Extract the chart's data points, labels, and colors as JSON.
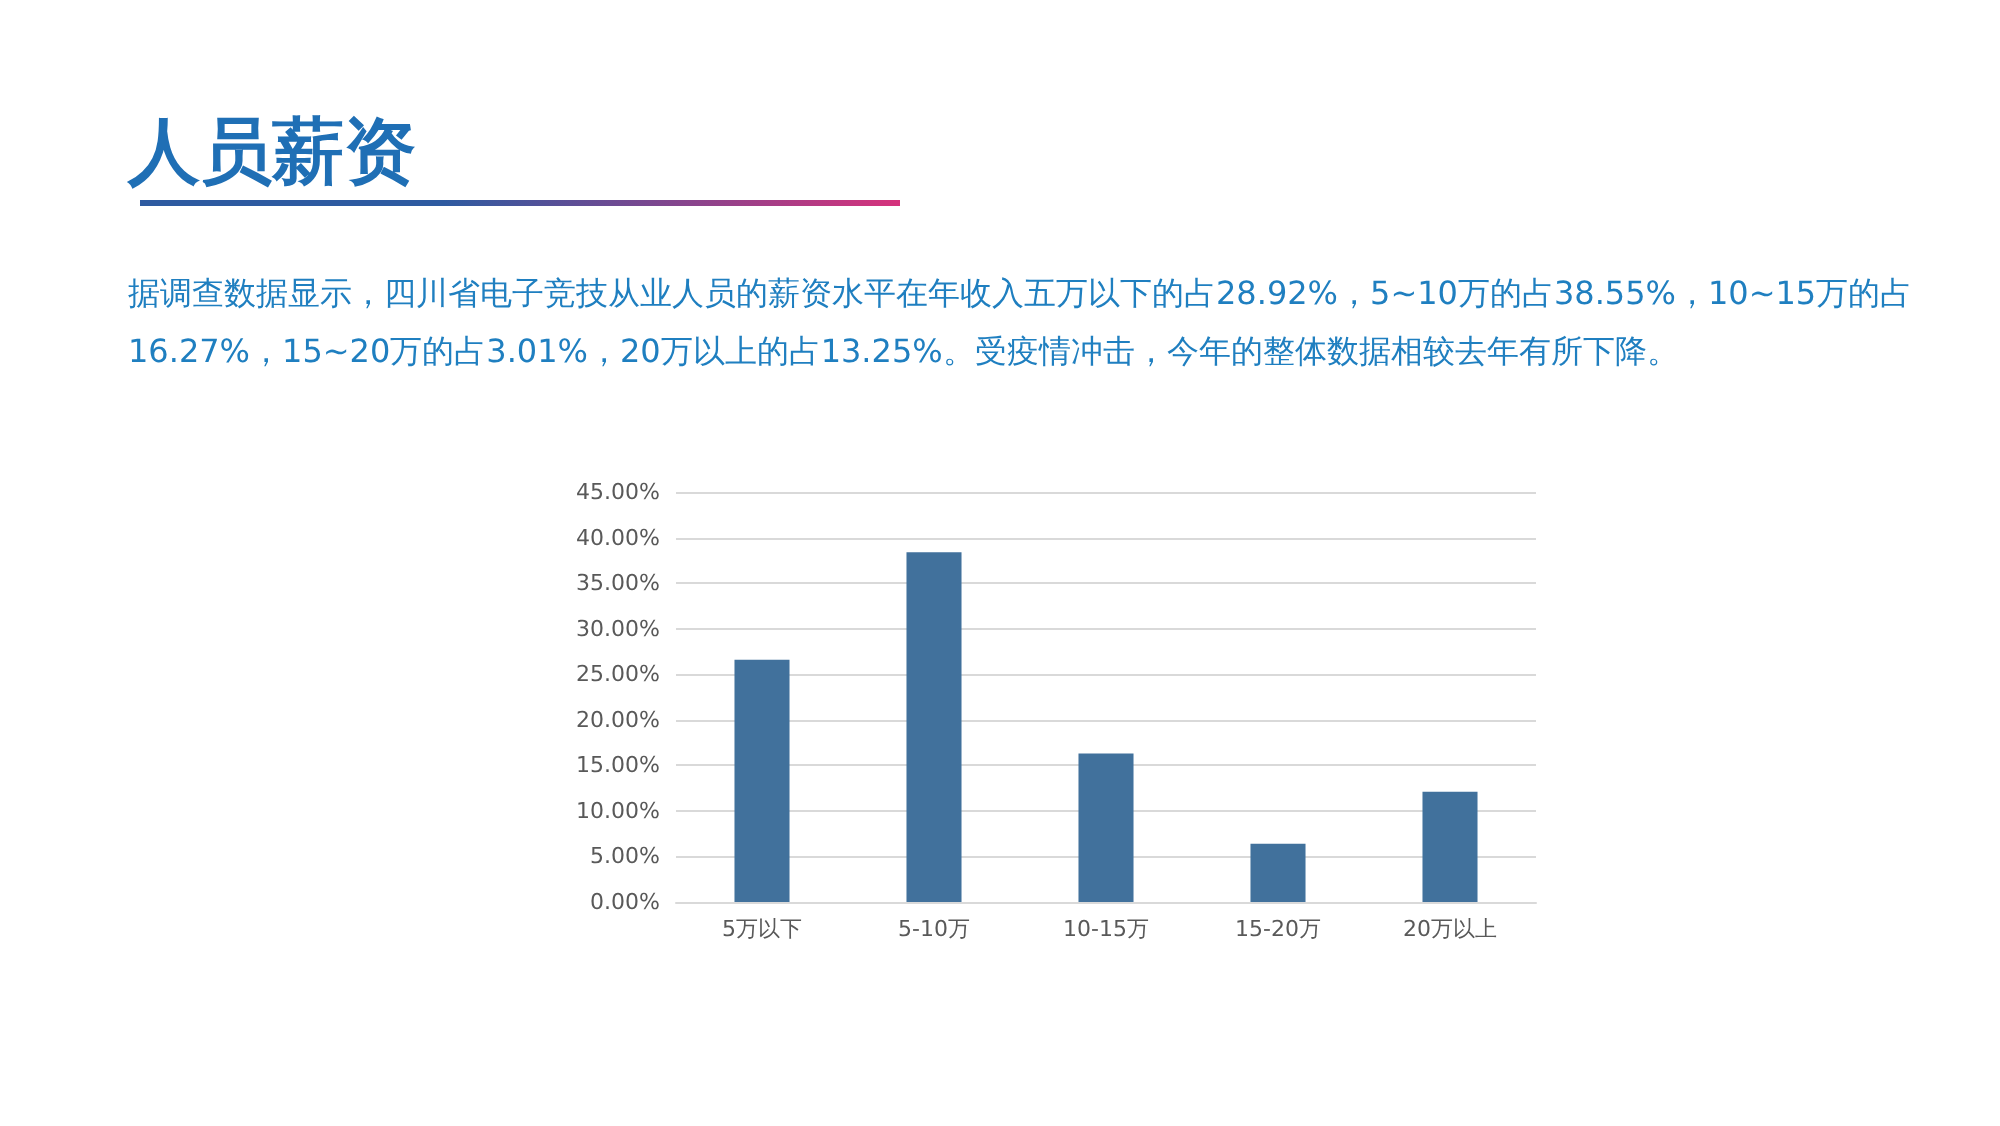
{
  "chart_data": {
    "type": "bar",
    "title": "人员薪资",
    "subtitle": "据调查数据显示，四川省电子竞技从业人员的薪资水平在年收入五万以下的占28.92%，5~10万的占38.55%，10~15万的占16.27%，15~20万的占3.01%，20万以上的占13.25%。受疫情冲击，今年的整体数据相较去年有所下降。",
    "categories": [
      "5万以下",
      "5-10万",
      "10-15万",
      "15-20万",
      "20万以上"
    ],
    "values": [
      26.6,
      38.4,
      16.3,
      6.4,
      12.1
    ],
    "color": "#41719c",
    "ylim": [
      0,
      45
    ],
    "yticks": [
      {
        "value": 0,
        "label": "0.00%"
      },
      {
        "value": 5,
        "label": "5.00%"
      },
      {
        "value": 10,
        "label": "10.00%"
      },
      {
        "value": 15,
        "label": "15.00%"
      },
      {
        "value": 20,
        "label": "20.00%"
      },
      {
        "value": 25,
        "label": "25.00%"
      },
      {
        "value": 30,
        "label": "30.00%"
      },
      {
        "value": 35,
        "label": "35.00%"
      },
      {
        "value": 40,
        "label": "40.00%"
      },
      {
        "value": 45,
        "label": "45.00%"
      }
    ],
    "grid": "y"
  }
}
